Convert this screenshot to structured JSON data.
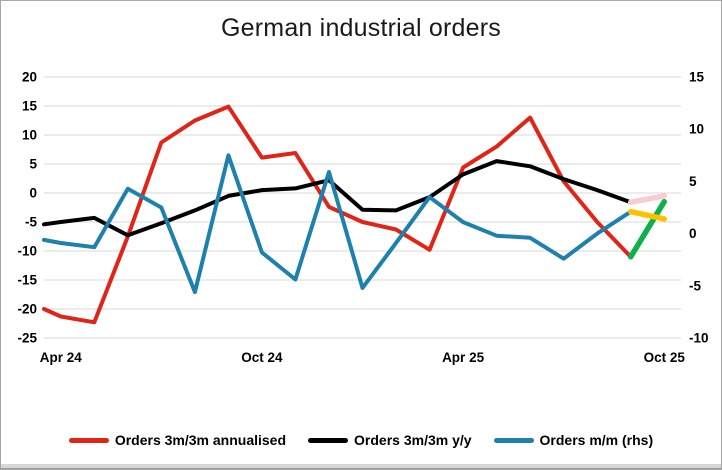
{
  "title": "German industrial orders",
  "chart_data": {
    "type": "line",
    "title": "German industrial orders",
    "categories": [
      "Apr 24",
      "May 24",
      "Jun 24",
      "Jul 24",
      "Aug 24",
      "Sep 24",
      "Oct 24",
      "Nov 24",
      "Dec 24",
      "Jan 25",
      "Feb 25",
      "Mar 25",
      "Apr 25",
      "May 25",
      "Jun 25",
      "Jul 25",
      "Aug 25",
      "Sep 25",
      "Oct 25"
    ],
    "x_ticks": [
      {
        "index": 0,
        "label": "Apr 24"
      },
      {
        "index": 6,
        "label": "Oct 24"
      },
      {
        "index": 12,
        "label": "Apr 25"
      },
      {
        "index": 18,
        "label": "Oct 25"
      }
    ],
    "left_axis": {
      "ticks": [
        20,
        15,
        10,
        5,
        0,
        -5,
        -10,
        -15,
        -20,
        -25
      ],
      "max": 20,
      "min": -25
    },
    "right_axis": {
      "ticks": [
        15,
        10,
        5,
        0,
        -5,
        -10
      ],
      "max": 15,
      "min": -10
    },
    "grid": "horizontal",
    "gridline_color": "#d9d9d9",
    "legend_position": "bottom",
    "series": [
      {
        "name": "Orders 3m/3m annualised",
        "axis": "left",
        "color": "#e02418",
        "edge_value": -20.0,
        "values": [
          -21.3,
          -22.3,
          -7.5,
          8.7,
          12.5,
          14.9,
          6.1,
          6.9,
          -2.4,
          -5.0,
          -6.3,
          -9.8,
          4.4,
          8.0,
          13.0,
          2.0,
          -5.0,
          -11.0
        ],
        "forecast": {
          "category": "Oct 25",
          "value": -1.5,
          "color": "#0db14b"
        }
      },
      {
        "name": "Orders 3m/3m y/y",
        "axis": "left",
        "color": "#000000",
        "edge_value": -5.4,
        "values": [
          -5.0,
          -4.3,
          -7.3,
          -5.2,
          -3.0,
          -0.5,
          0.5,
          0.8,
          2.2,
          -2.9,
          -3.0,
          -0.7,
          3.2,
          5.5,
          4.6,
          2.4,
          0.5,
          -1.6
        ],
        "forecast": {
          "category": "Oct 25",
          "value": -0.5,
          "color": "#f8cbd0"
        }
      },
      {
        "name": "Orders m/m (rhs)",
        "axis": "right",
        "color": "#1e81ad",
        "edge_value": -0.6,
        "values": [
          -0.9,
          -1.3,
          4.3,
          2.5,
          -5.6,
          7.5,
          -1.8,
          -4.4,
          5.9,
          -5.2,
          -0.9,
          3.5,
          1.1,
          -0.2,
          -0.4,
          -2.4,
          0.0,
          2.1
        ],
        "forecast": {
          "category": "Oct 25",
          "value": 1.4,
          "color": "#ffc000"
        }
      }
    ]
  },
  "legend": {
    "items": [
      {
        "label": "Orders 3m/3m annualised",
        "color": "#e02418"
      },
      {
        "label": "Orders 3m/3m y/y",
        "color": "#000000"
      },
      {
        "label": "Orders m/m (rhs)",
        "color": "#1e81ad"
      }
    ]
  }
}
